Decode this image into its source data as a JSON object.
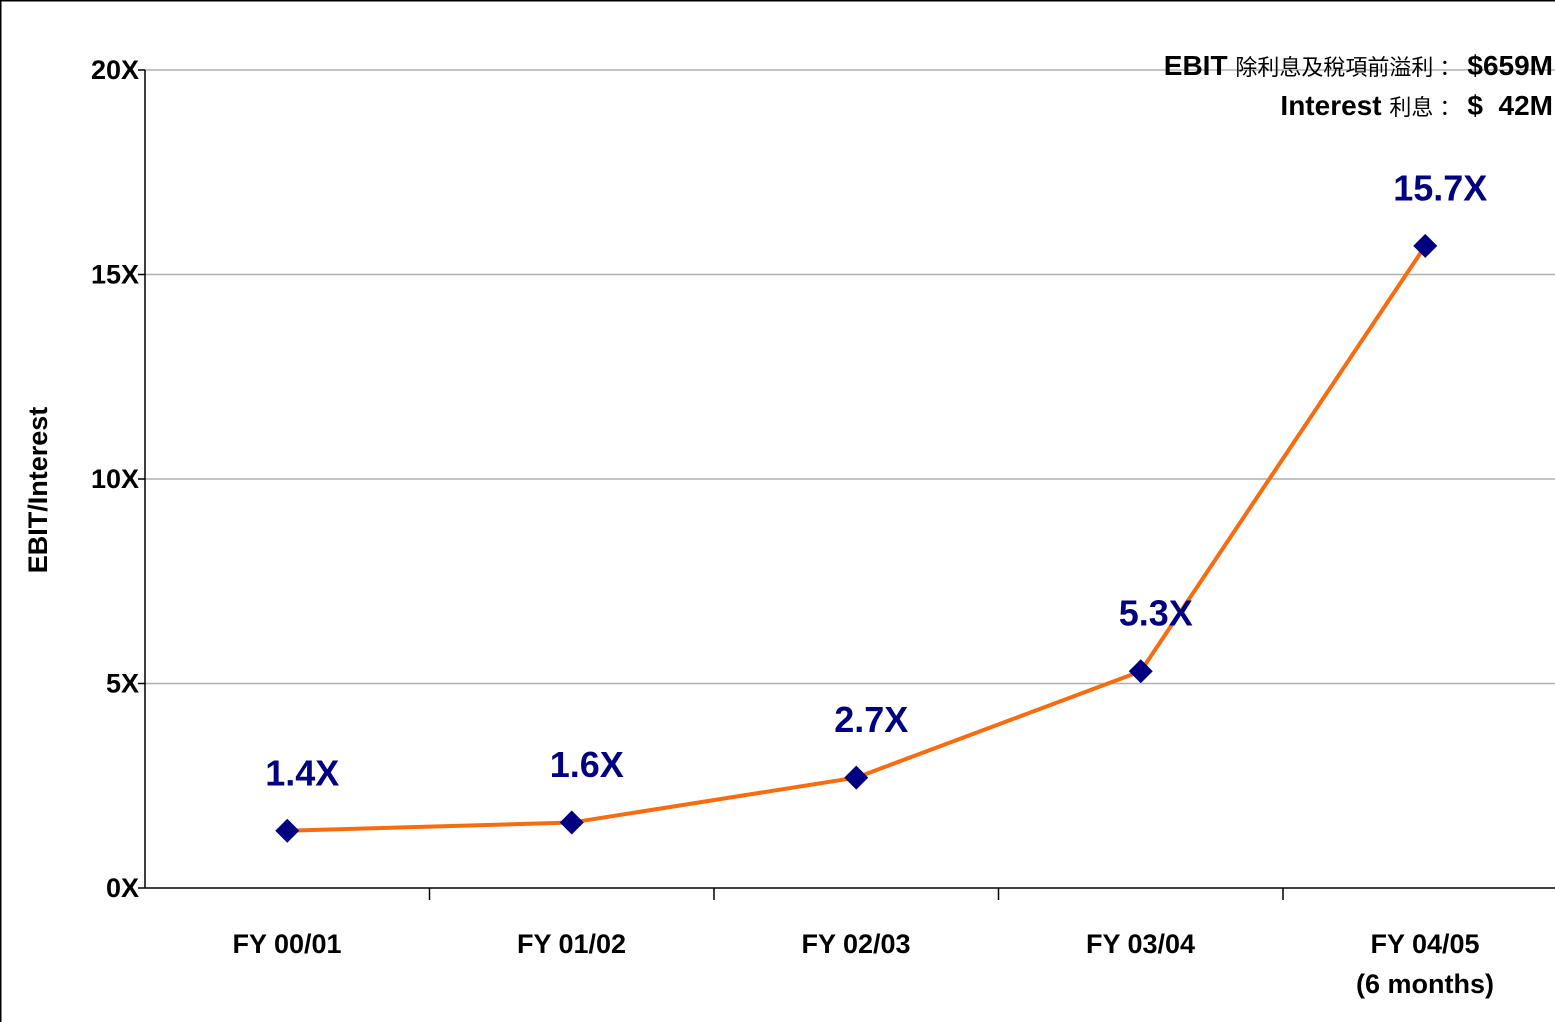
{
  "chart_data": {
    "type": "line",
    "y_label": "EBIT/Interest",
    "annotations": [
      {
        "label": "EBIT",
        "chinese": "除利息及稅項前溢利",
        "sep": "：",
        "value": "$659M"
      },
      {
        "label": "Interest",
        "chinese": "利息",
        "sep": "：",
        "value": "$  42M"
      }
    ],
    "categories": [
      "FY 00/01",
      "FY 01/02",
      "FY 02/03",
      "FY 03/04",
      "FY 04/05\n(6 months)"
    ],
    "series": [
      {
        "name": "EBIT/Interest",
        "color": "#f96b0f",
        "marker_color": "#000080",
        "values": [
          1.4,
          1.6,
          2.7,
          5.3,
          15.7
        ],
        "value_labels": [
          "1.4X",
          "1.6X",
          "2.7X",
          "5.3X",
          "15.7X"
        ]
      }
    ],
    "ylim": [
      0,
      20
    ],
    "yticks": [
      {
        "value": 0,
        "label": "0X"
      },
      {
        "value": 5,
        "label": "5X"
      },
      {
        "value": 10,
        "label": "10X"
      },
      {
        "value": 15,
        "label": "15X"
      },
      {
        "value": 20,
        "label": "20X"
      }
    ],
    "grid": true
  }
}
